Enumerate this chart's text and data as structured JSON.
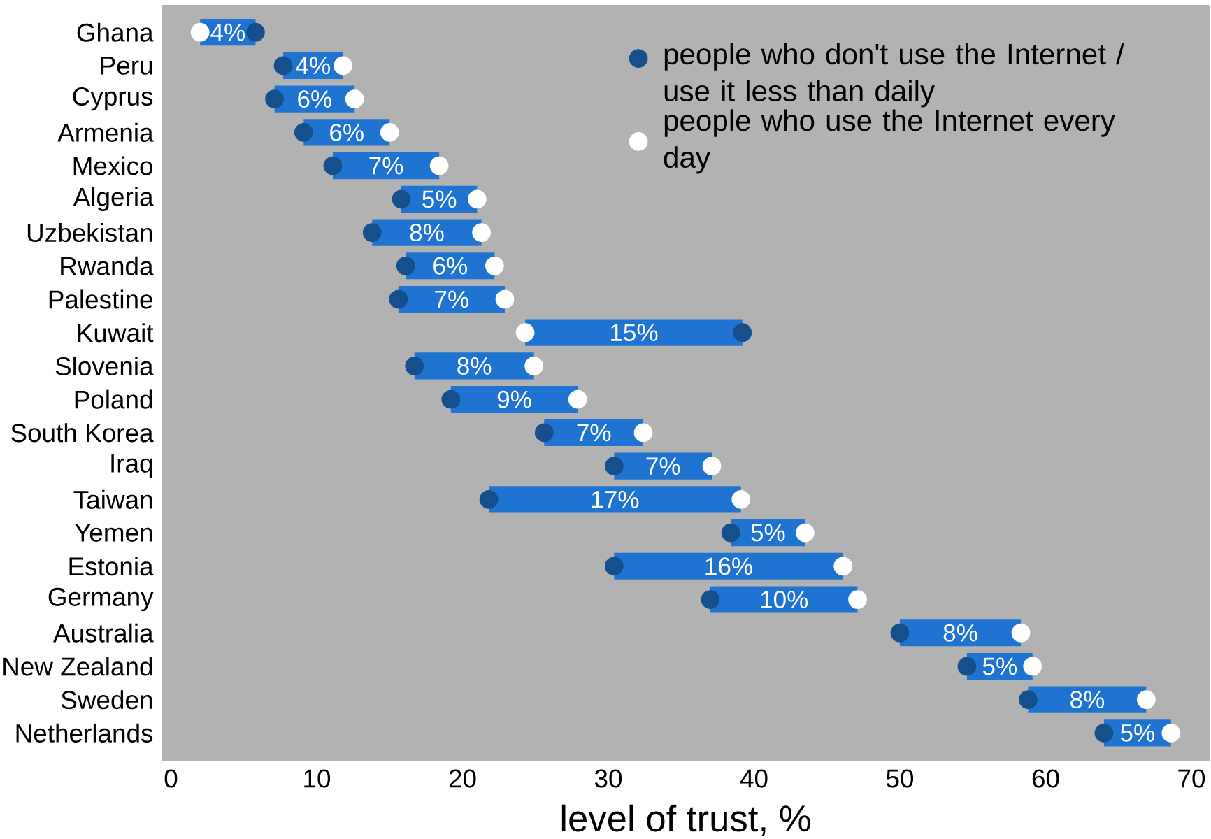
{
  "chart_data": {
    "type": "bar",
    "orientation": "horizontal",
    "xlabel": "level of trust, %",
    "categories": [
      "Ghana",
      "Peru",
      "Cyprus",
      "Armenia",
      "Mexico",
      "Algeria",
      "Uzbekistan",
      "Rwanda",
      "Palestine",
      "Kuwait",
      "Slovenia",
      "Poland",
      "South Korea",
      "Iraq",
      "Taiwan",
      "Yemen",
      "Estonia",
      "Germany",
      "Australia",
      "New Zealand",
      "Sweden",
      "Netherlands"
    ],
    "xlim": [
      -0.6,
      71.2
    ],
    "xticks": [
      0,
      10,
      20,
      30,
      40,
      50,
      60,
      70
    ],
    "legend": "top right",
    "marker": "circle",
    "series": [
      {
        "color": "#1f74d2",
        "base": [
          2.0,
          7.7,
          7.1,
          9.1,
          11.1,
          15.8,
          13.8,
          16.1,
          15.6,
          24.3,
          16.7,
          19.2,
          25.6,
          30.4,
          21.8,
          38.4,
          30.4,
          37.0,
          50.0,
          54.6,
          58.8,
          64.0
        ],
        "values": [
          3.8,
          4.1,
          5.5,
          5.9,
          7.3,
          5.2,
          7.5,
          6.1,
          7.3,
          14.9,
          8.2,
          8.7,
          6.8,
          6.7,
          17.3,
          5.1,
          15.7,
          10.1,
          8.3,
          4.5,
          8.1,
          4.6
        ],
        "value_labels": [
          "4%",
          "4%",
          "6%",
          "6%",
          "7%",
          "5%",
          "8%",
          "6%",
          "7%",
          "15%",
          "8%",
          "9%",
          "7%",
          "7%",
          "17%",
          "5%",
          "16%",
          "10%",
          "8%",
          "5%",
          "8%",
          "5%"
        ]
      },
      {
        "type": "scatter",
        "name": "people who don't use the Internet / use it less than daily",
        "color": "#154f8c",
        "values": [
          5.8,
          7.7,
          7.1,
          9.1,
          11.1,
          15.8,
          13.8,
          16.1,
          15.6,
          39.2,
          16.7,
          19.2,
          25.6,
          30.4,
          21.8,
          38.4,
          30.4,
          37.0,
          50.0,
          54.6,
          58.8,
          64.0
        ]
      },
      {
        "type": "scatter",
        "name": "people who use the Internet every day",
        "color": "#ffffff",
        "values": [
          2.0,
          11.8,
          12.6,
          15.0,
          18.4,
          21.0,
          21.3,
          22.2,
          22.9,
          24.3,
          24.9,
          27.9,
          32.4,
          37.1,
          39.1,
          43.5,
          46.1,
          47.1,
          58.3,
          59.1,
          66.9,
          68.6
        ]
      }
    ]
  }
}
